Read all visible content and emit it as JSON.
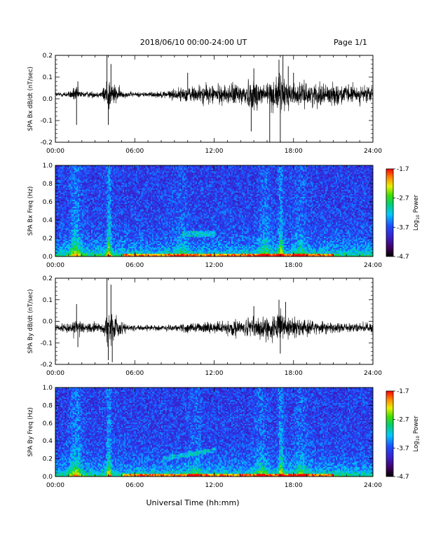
{
  "header": {
    "title": "2018/06/10  00:00-24:00 UT",
    "page": "Page 1/1"
  },
  "footer": {
    "xlabel": "Universal Time (hh:mm)"
  },
  "chart_data": [
    {
      "type": "line",
      "ylabel": "SPA Bx dB/dt (nT/sec)",
      "xlim": [
        0,
        24
      ],
      "xticks": [
        "00:00",
        "06:00",
        "12:00",
        "18:00",
        "24:00"
      ],
      "ylim": [
        -0.2,
        0.2
      ],
      "yticks": [
        "0.2",
        "0.1",
        "0.0",
        "-0.1",
        "-0.2"
      ],
      "baseline": 0.02,
      "activity_profile": [
        [
          0,
          0.015
        ],
        [
          1,
          0.02
        ],
        [
          1.5,
          0.05
        ],
        [
          2,
          0.02
        ],
        [
          3.5,
          0.02
        ],
        [
          4,
          0.12
        ],
        [
          4.5,
          0.06
        ],
        [
          5.2,
          0.02
        ],
        [
          6,
          0.015
        ],
        [
          8,
          0.02
        ],
        [
          10,
          0.05
        ],
        [
          11,
          0.06
        ],
        [
          12,
          0.06
        ],
        [
          13,
          0.06
        ],
        [
          14,
          0.08
        ],
        [
          15.2,
          0.1
        ],
        [
          16,
          0.08
        ],
        [
          17,
          0.12
        ],
        [
          17.5,
          0.1
        ],
        [
          18,
          0.07
        ],
        [
          20,
          0.07
        ],
        [
          22,
          0.06
        ],
        [
          24,
          0.05
        ]
      ],
      "spikes": [
        [
          1.6,
          -0.12
        ],
        [
          1.7,
          0.08
        ],
        [
          3.9,
          0.2
        ],
        [
          4.0,
          -0.12
        ],
        [
          4.2,
          0.16
        ],
        [
          10.0,
          0.12
        ],
        [
          14.8,
          -0.15
        ],
        [
          15.0,
          0.14
        ],
        [
          16.2,
          -0.2
        ],
        [
          16.9,
          0.18
        ],
        [
          17.0,
          -0.2
        ],
        [
          17.2,
          0.2
        ],
        [
          17.6,
          0.15
        ],
        [
          18.0,
          0.12
        ]
      ]
    },
    {
      "type": "heatmap",
      "ylabel": "SPA Bx Freq (Hz)",
      "xlim": [
        0,
        24
      ],
      "xticks": [
        "00:00",
        "06:00",
        "12:00",
        "18:00",
        "24:00"
      ],
      "ylim": [
        0,
        1
      ],
      "yticks": [
        "1.0",
        "0.8",
        "0.6",
        "0.4",
        "0.2",
        "0.0"
      ],
      "colorbar": {
        "label": "Log10 Power",
        "range": [
          -4.7,
          -1.7
        ],
        "ticks": [
          "-1.7",
          "-2.7",
          "-3.7",
          "-4.7"
        ]
      },
      "bright_times": [
        [
          1.5,
          0.7
        ],
        [
          4.0,
          1.0
        ],
        [
          9.5,
          0.3
        ],
        [
          15.8,
          0.5
        ],
        [
          17.0,
          1.0
        ],
        [
          18.5,
          0.4
        ]
      ],
      "band_feature": {
        "t_start": 9.5,
        "t_end": 12.0,
        "freq": 0.25
      }
    },
    {
      "type": "line",
      "ylabel": "SPA By dB/dt (nT/sec)",
      "xlim": [
        0,
        24
      ],
      "xticks": [
        "00:00",
        "06:00",
        "12:00",
        "18:00",
        "24:00"
      ],
      "ylim": [
        -0.2,
        0.2
      ],
      "yticks": [
        "0.2",
        "0.1",
        "0.0",
        "-0.1",
        "-0.2"
      ],
      "baseline": -0.03,
      "activity_profile": [
        [
          0,
          0.02
        ],
        [
          1,
          0.03
        ],
        [
          1.5,
          0.06
        ],
        [
          2.2,
          0.03
        ],
        [
          3.5,
          0.03
        ],
        [
          4,
          0.13
        ],
        [
          4.5,
          0.08
        ],
        [
          5.2,
          0.03
        ],
        [
          6,
          0.02
        ],
        [
          9,
          0.02
        ],
        [
          10,
          0.03
        ],
        [
          12,
          0.04
        ],
        [
          14,
          0.05
        ],
        [
          15,
          0.07
        ],
        [
          16,
          0.08
        ],
        [
          17,
          0.1
        ],
        [
          18,
          0.06
        ],
        [
          20,
          0.04
        ],
        [
          22,
          0.03
        ],
        [
          24,
          0.03
        ]
      ],
      "spikes": [
        [
          1.6,
          0.08
        ],
        [
          1.7,
          -0.12
        ],
        [
          3.9,
          0.2
        ],
        [
          4.0,
          -0.18
        ],
        [
          4.2,
          0.17
        ],
        [
          4.3,
          -0.19
        ],
        [
          15.0,
          0.07
        ],
        [
          16.9,
          0.1
        ],
        [
          17.0,
          -0.15
        ],
        [
          17.4,
          0.09
        ]
      ]
    },
    {
      "type": "heatmap",
      "ylabel": "SPA By Freq (Hz)",
      "xlim": [
        0,
        24
      ],
      "xticks": [
        "00:00",
        "06:00",
        "12:00",
        "18:00",
        "24:00"
      ],
      "ylim": [
        0,
        1
      ],
      "yticks": [
        "1.0",
        "0.8",
        "0.6",
        "0.4",
        "0.2",
        "0.0"
      ],
      "colorbar": {
        "label": "Log10 Power",
        "range": [
          -4.7,
          -1.7
        ],
        "ticks": [
          "-1.7",
          "-2.7",
          "-3.7",
          "-4.7"
        ]
      },
      "bright_times": [
        [
          1.5,
          0.7
        ],
        [
          4.0,
          1.0
        ],
        [
          10.5,
          0.35
        ],
        [
          15.5,
          0.5
        ],
        [
          17.0,
          1.0
        ],
        [
          18.5,
          0.5
        ]
      ],
      "band_feature": {
        "t_start": 8.0,
        "t_end": 12.0,
        "freq_start": 0.2,
        "freq_end": 0.3
      }
    }
  ]
}
